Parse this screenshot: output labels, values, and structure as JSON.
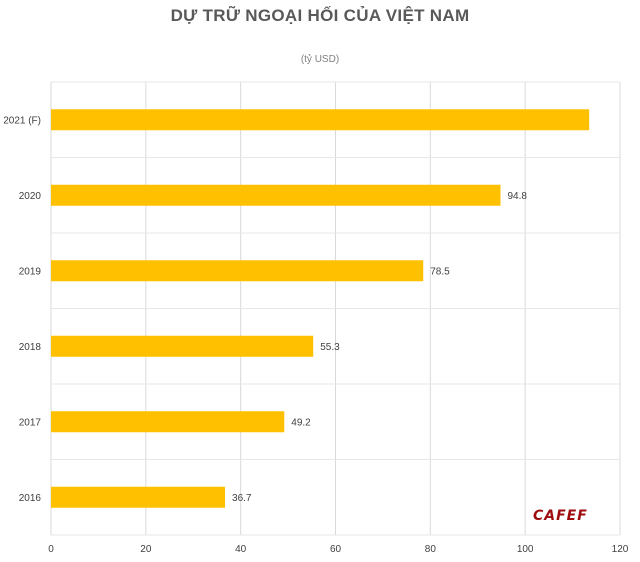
{
  "chart_data": {
    "type": "bar",
    "orientation": "horizontal",
    "title": "DỰ TRỮ NGOẠI HỐI CỦA VIỆT NAM",
    "subtitle": "(tỷ USD)",
    "categories": [
      "2021 (F)",
      "2020",
      "2019",
      "2018",
      "2017",
      "2016"
    ],
    "values": [
      113.5,
      94.8,
      78.5,
      55.3,
      49.2,
      36.7
    ],
    "data_labels": [
      "",
      "94.8",
      "78.5",
      "55.3",
      "49.2",
      "36.7"
    ],
    "xlim": [
      0,
      120
    ],
    "xticks": [
      "0",
      "20",
      "40",
      "60",
      "80",
      "100",
      "120"
    ],
    "grid": true,
    "bar_color": "#FFC000"
  },
  "logo_text": "CAFEF"
}
